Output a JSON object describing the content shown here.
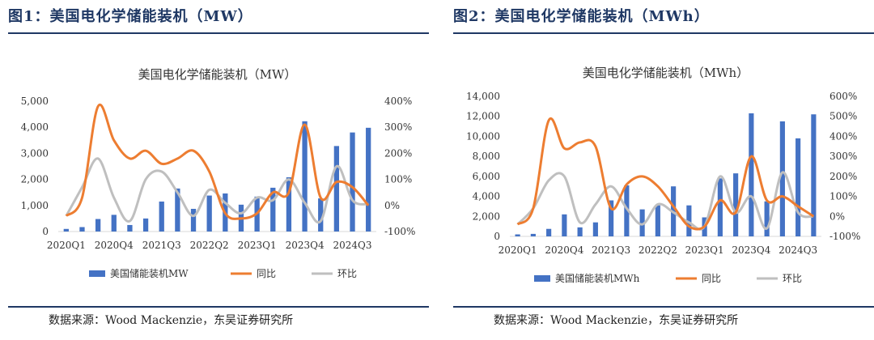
{
  "colors": {
    "bar": "#4472c4",
    "yoy": "#ed7d31",
    "qoq": "#bfbfbf",
    "title": "#1f3864"
  },
  "charts": [
    {
      "figure_title": "图1：美国电化学储能装机（MW）",
      "source_label": "数据来源：",
      "source_text": "Wood Mackenzie，东吴证券研究所"
    },
    {
      "figure_title": "图2：美国电化学储能装机（MWh）",
      "source_label": "数据来源：",
      "source_text": "Wood Mackenzie，东吴证券研究所"
    }
  ],
  "chart_data": [
    {
      "type": "bar",
      "title": "美国电化学储能装机（MW）",
      "categories": [
        "2020Q1",
        "2020Q2",
        "2020Q3",
        "2020Q4",
        "2021Q1",
        "2021Q2",
        "2021Q3",
        "2021Q4",
        "2022Q1",
        "2022Q2",
        "2022Q3",
        "2022Q4",
        "2023Q1",
        "2023Q2",
        "2023Q3",
        "2023Q4",
        "2024Q1",
        "2024Q2",
        "2024Q3",
        "2024Q4"
      ],
      "tick_labels": [
        "2020Q1",
        "2020Q4",
        "2021Q3",
        "2022Q2",
        "2023Q1",
        "2023Q4",
        "2024Q3"
      ],
      "tick_indices": [
        0,
        3,
        6,
        9,
        12,
        15,
        18
      ],
      "y_left": {
        "min": 0,
        "max": 5000,
        "ticks": [
          0,
          1000,
          2000,
          3000,
          4000,
          5000
        ],
        "tick_labels": [
          "0",
          "1,000",
          "2,000",
          "3,000",
          "4,000",
          "5,000"
        ]
      },
      "y_right": {
        "min": -100,
        "max": 400,
        "ticks": [
          -100,
          0,
          100,
          200,
          300,
          400
        ],
        "tick_labels": [
          "-100%",
          "0%",
          "100%",
          "200%",
          "300%",
          "400%"
        ]
      },
      "series": [
        {
          "name": "美国储能装机MW",
          "kind": "bar",
          "values": [
            100,
            170,
            480,
            640,
            250,
            500,
            1150,
            1650,
            870,
            1380,
            1460,
            1030,
            1340,
            1680,
            2080,
            4230,
            1270,
            3280,
            3800,
            3980
          ]
        },
        {
          "name": "同比",
          "kind": "line",
          "values": [
            -40,
            30,
            380,
            250,
            180,
            210,
            160,
            180,
            210,
            130,
            -30,
            -50,
            -30,
            50,
            50,
            310,
            30,
            90,
            70,
            0
          ]
        },
        {
          "name": "环比",
          "kind": "line",
          "values": [
            -40,
            70,
            180,
            30,
            -60,
            100,
            130,
            50,
            -40,
            60,
            10,
            -30,
            30,
            20,
            100,
            10,
            -60,
            150,
            20,
            5
          ]
        }
      ]
    },
    {
      "type": "bar",
      "title": "美国电化学储能装机（MWh）",
      "categories": [
        "2020Q1",
        "2020Q2",
        "2020Q3",
        "2020Q4",
        "2021Q1",
        "2021Q2",
        "2021Q3",
        "2021Q4",
        "2022Q1",
        "2022Q2",
        "2022Q3",
        "2022Q4",
        "2023Q1",
        "2023Q2",
        "2023Q3",
        "2023Q4",
        "2024Q1",
        "2024Q2",
        "2024Q3",
        "2024Q4"
      ],
      "tick_labels": [
        "2020Q1",
        "2020Q4",
        "2021Q3",
        "2022Q2",
        "2023Q1",
        "2023Q4",
        "2024Q3"
      ],
      "tick_indices": [
        0,
        3,
        6,
        9,
        12,
        15,
        18
      ],
      "y_left": {
        "min": 0,
        "max": 14000,
        "ticks": [
          0,
          2000,
          4000,
          6000,
          8000,
          10000,
          12000,
          14000
        ],
        "tick_labels": [
          "0",
          "2,000",
          "4,000",
          "6,000",
          "8,000",
          "10,000",
          "12,000",
          "14,000"
        ]
      },
      "y_right": {
        "min": -100,
        "max": 600,
        "ticks": [
          -100,
          0,
          100,
          200,
          300,
          400,
          500,
          600
        ],
        "tick_labels": [
          "-100%",
          "0%",
          "100%",
          "200%",
          "300%",
          "400%",
          "500%",
          "600%"
        ]
      },
      "series": [
        {
          "name": "美国储能装机MWh",
          "kind": "bar",
          "values": [
            200,
            250,
            750,
            2200,
            900,
            1400,
            3600,
            5100,
            2700,
            3100,
            5000,
            3100,
            1900,
            5800,
            6300,
            12300,
            3500,
            11500,
            9800,
            12200
          ]
        },
        {
          "name": "同比",
          "kind": "line",
          "values": [
            -40,
            40,
            480,
            340,
            370,
            350,
            40,
            160,
            200,
            150,
            50,
            -50,
            -50,
            80,
            20,
            300,
            80,
            100,
            50,
            0
          ]
        },
        {
          "name": "环比",
          "kind": "line",
          "values": [
            -40,
            40,
            180,
            200,
            -30,
            60,
            150,
            40,
            -40,
            60,
            20,
            -30,
            -50,
            200,
            20,
            100,
            -60,
            220,
            20,
            0
          ]
        }
      ]
    }
  ]
}
